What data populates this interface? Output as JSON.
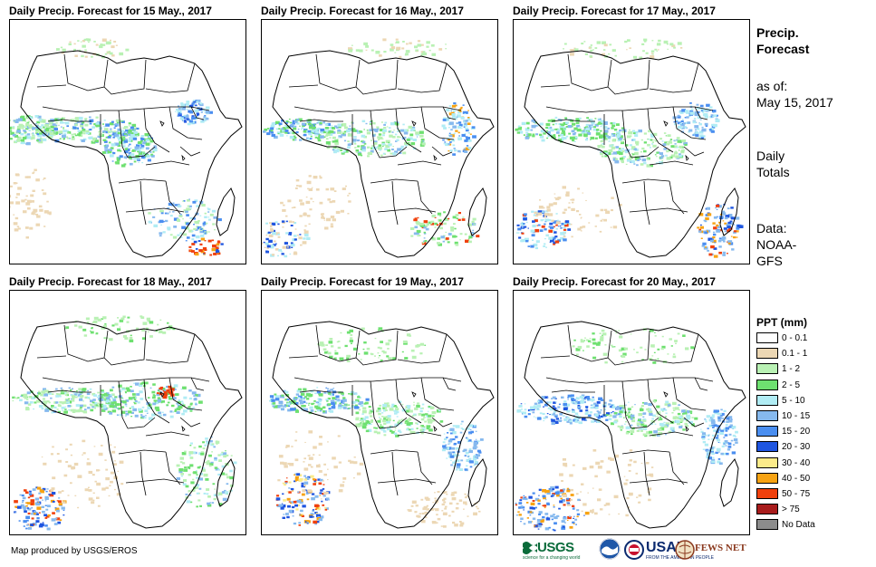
{
  "panels": [
    {
      "title": "Daily Precip. Forecast for 15 May., 2017"
    },
    {
      "title": "Daily Precip. Forecast for 16 May., 2017"
    },
    {
      "title": "Daily Precip. Forecast for 17 May., 2017"
    },
    {
      "title": "Daily Precip. Forecast for 18 May., 2017"
    },
    {
      "title": "Daily Precip. Forecast for 19 May., 2017"
    },
    {
      "title": "Daily Precip. Forecast for 20 May., 2017"
    }
  ],
  "side": {
    "title_line1": "Precip.",
    "title_line2": "Forecast",
    "asof_label": "as of:",
    "asof_date": "May 15, 2017",
    "totals_line1": "Daily",
    "totals_line2": "Totals",
    "data_line1": "Data:",
    "data_line2": "NOAA-",
    "data_line3": "GFS"
  },
  "legend": {
    "title": "PPT (mm)",
    "items": [
      {
        "label": "0 - 0.1",
        "color": "#ffffff"
      },
      {
        "label": "0.1 - 1",
        "color": "#ecd7b4"
      },
      {
        "label": "1 - 2",
        "color": "#b9f1b4"
      },
      {
        "label": "2 - 5",
        "color": "#6ee070"
      },
      {
        "label": "5 - 10",
        "color": "#b0ecf4"
      },
      {
        "label": "10 - 15",
        "color": "#86b9ee"
      },
      {
        "label": "15 - 20",
        "color": "#4a8ef0"
      },
      {
        "label": "20 - 30",
        "color": "#1f55e0"
      },
      {
        "label": "30 - 40",
        "color": "#fbeb8a"
      },
      {
        "label": "40 - 50",
        "color": "#f7a313"
      },
      {
        "label": "50 - 75",
        "color": "#f0400c"
      },
      {
        "label": "> 75",
        "color": "#a81c1c"
      },
      {
        "label": "No Data",
        "color": "#8c8c8c"
      }
    ]
  },
  "footer": {
    "credit": "Map produced by USGS/EROS",
    "logos": {
      "usgs": "USGS",
      "usgs_tagline": "science for a changing world",
      "usaid": "USAID",
      "usaid_tagline": "FROM THE AMERICAN PEOPLE",
      "fews": "FEWS NET"
    }
  }
}
